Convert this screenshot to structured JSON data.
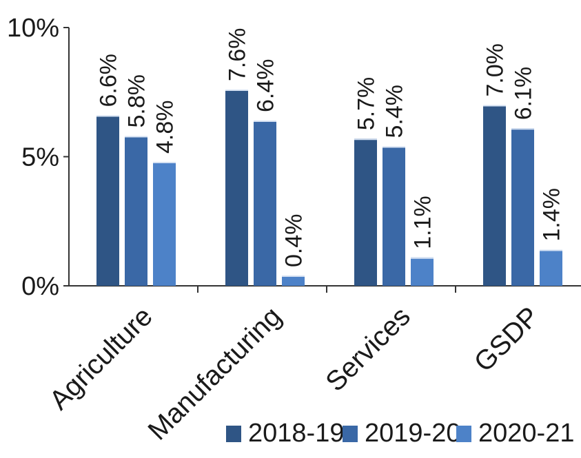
{
  "chart_data": {
    "type": "bar",
    "categories": [
      "Agriculture",
      "Manufacturing",
      "Services",
      "GSDP"
    ],
    "series": [
      {
        "name": "2018-19",
        "values": [
          6.6,
          7.6,
          5.7,
          7.0
        ],
        "labels": [
          "6.6%",
          "7.6%",
          "5.7%",
          "7.0%"
        ],
        "color": "#2f5585"
      },
      {
        "name": "2019-20",
        "values": [
          5.8,
          6.4,
          5.4,
          6.1
        ],
        "labels": [
          "5.8%",
          "6.4%",
          "5.4%",
          "6.1%"
        ],
        "color": "#3a68a6"
      },
      {
        "name": "2020-21",
        "values": [
          4.8,
          0.4,
          1.1,
          1.4
        ],
        "labels": [
          "4.8%",
          "0.4%",
          "1.1%",
          "1.4%"
        ],
        "color": "#4d82c8"
      }
    ],
    "yticks": [
      "0%",
      "5%",
      "10%"
    ],
    "ylim": [
      0,
      10
    ],
    "xlabel": "",
    "ylabel": "",
    "legend_position": "bottom",
    "grid": false
  }
}
